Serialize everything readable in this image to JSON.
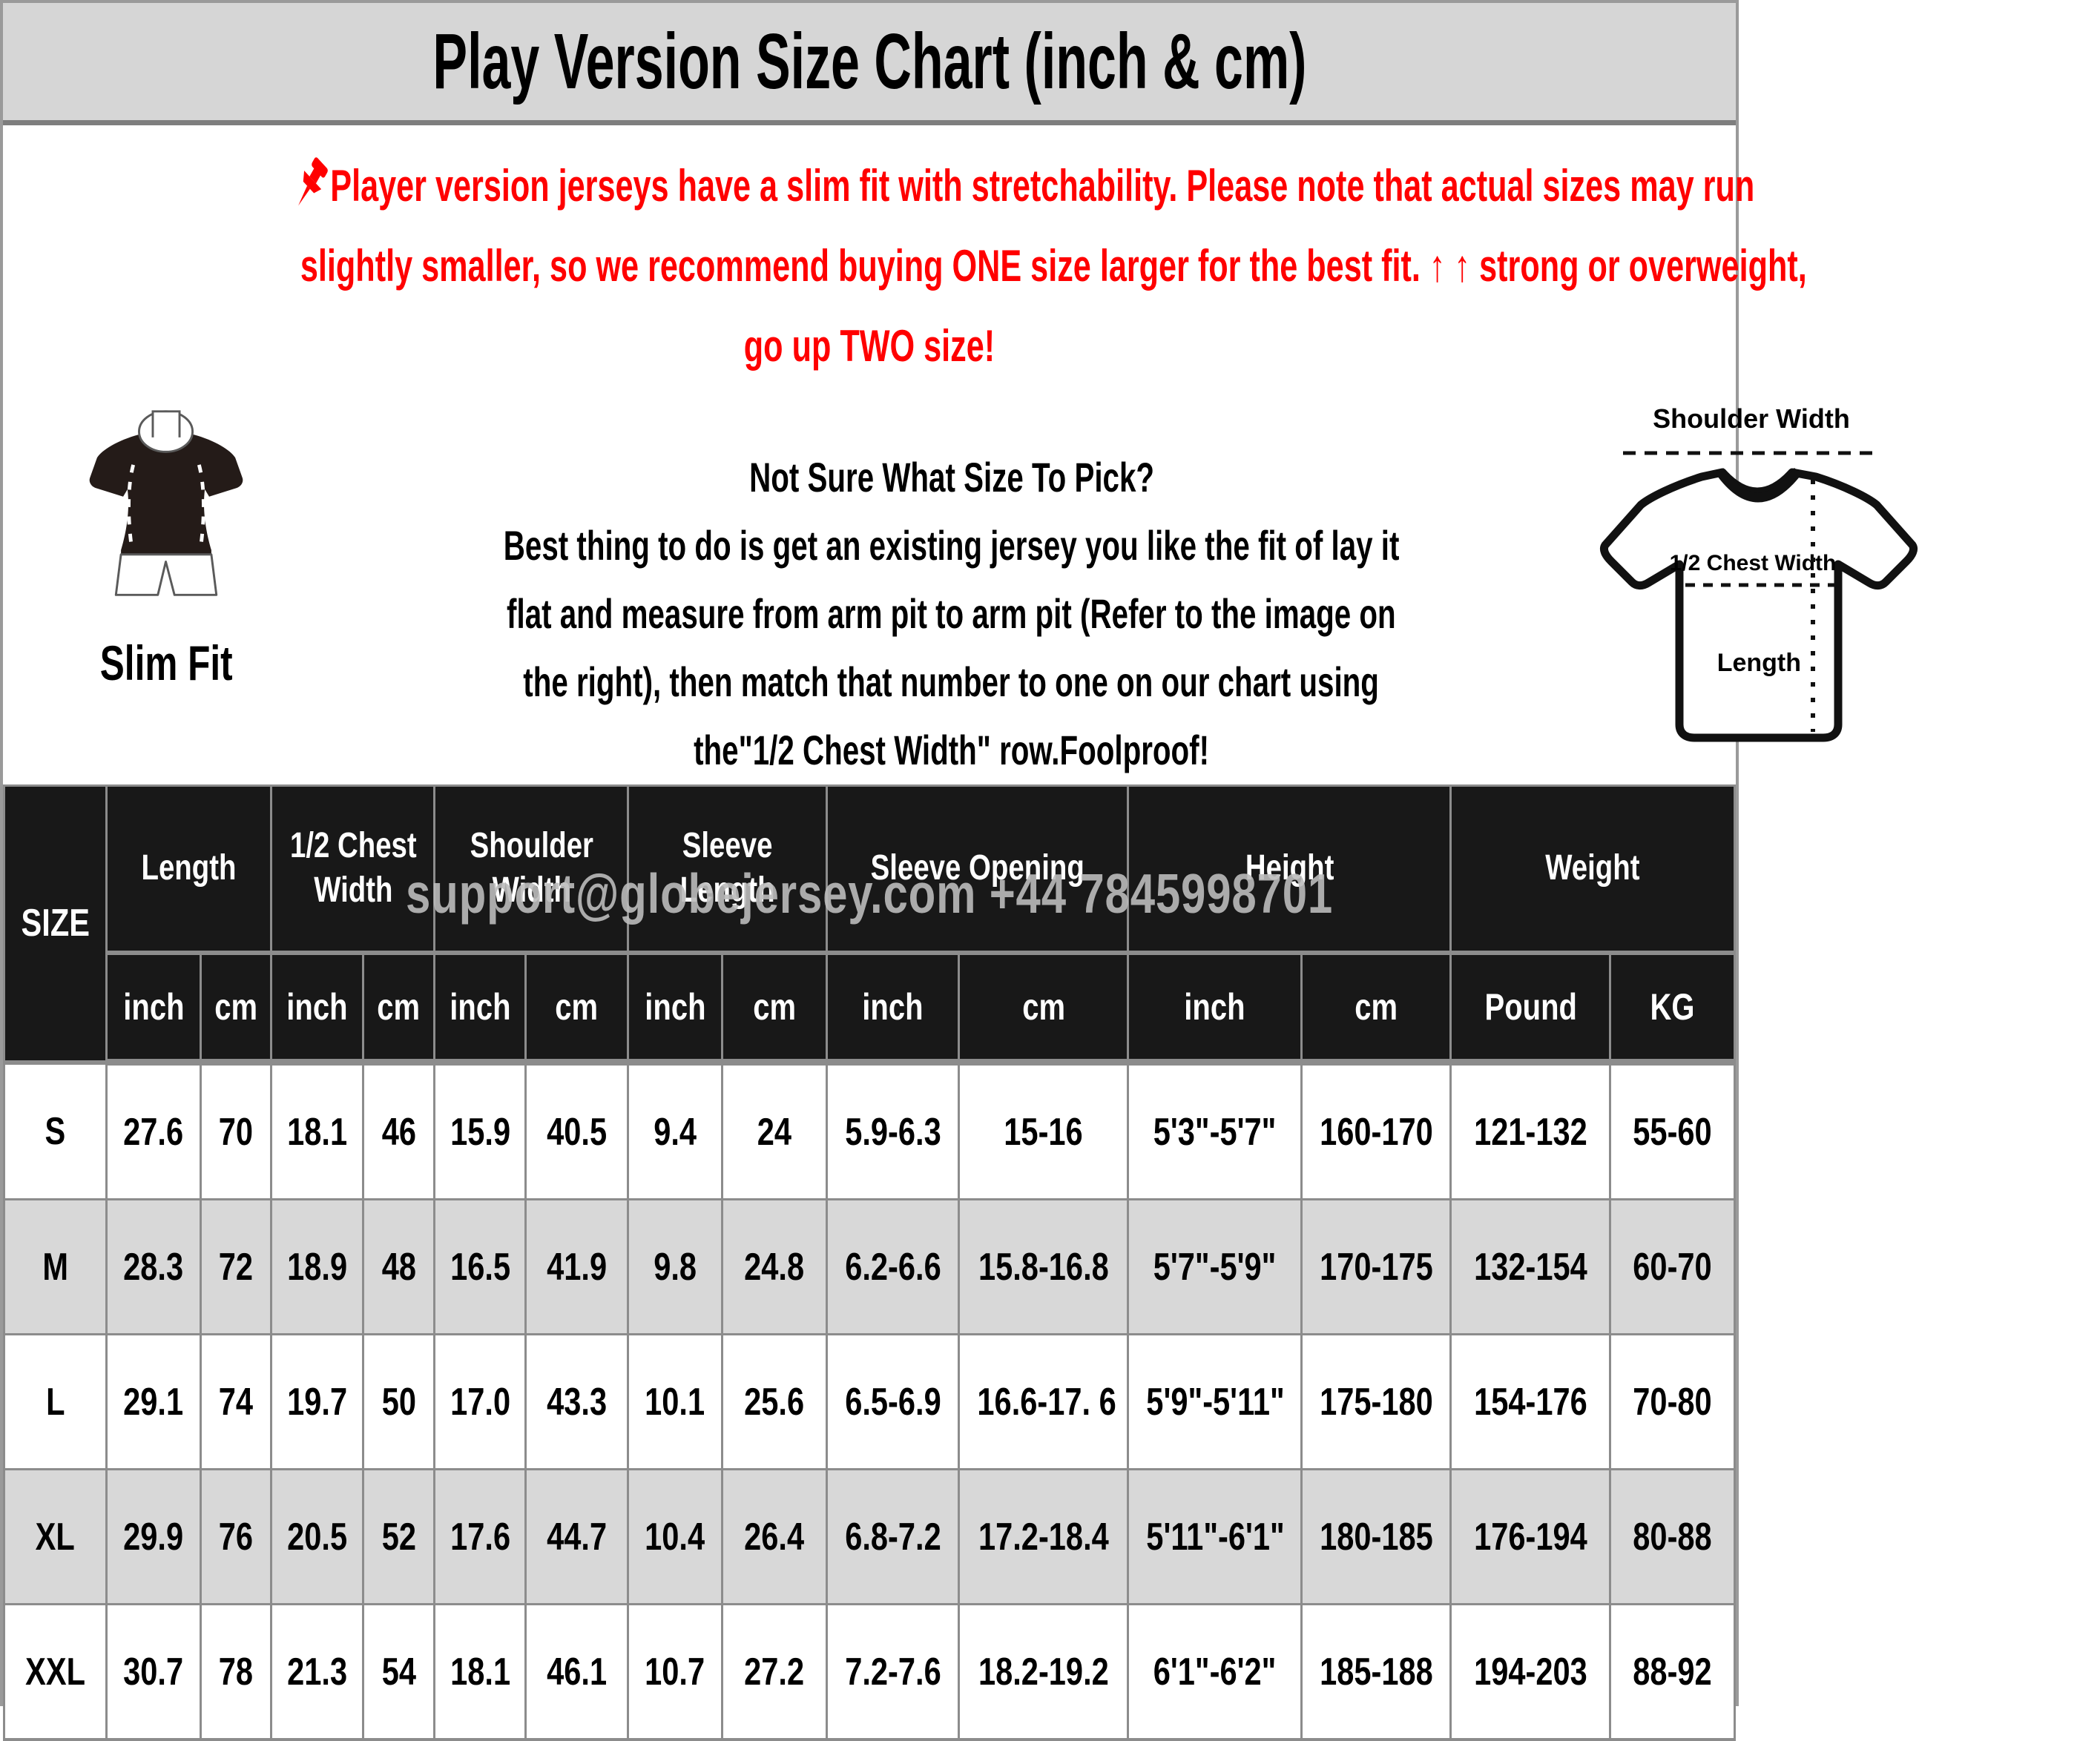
{
  "title": "Play Version Size Chart (inch & cm)",
  "icons": {
    "notice": "pushpin-icon",
    "arrows": "up-arrow"
  },
  "notice": {
    "line1": "Player version jerseys have a slim fit with stretchability. Please note that actual sizes may run",
    "line2": "slightly smaller, so we recommend buying ONE size larger for the best fit. ↑ ↑ strong or overweight,",
    "line3": "go up TWO size!"
  },
  "fit": {
    "label": "Slim Fit"
  },
  "guide": {
    "heading": "Not Sure What Size To Pick?",
    "lines": [
      "Best thing to do is get an existing jersey you like the fit of lay it",
      "flat and measure from arm pit to arm pit (Refer to the image on",
      "the right), then match that number to one on our chart using",
      "the\"1/2 Chest Width\" row.Foolproof!"
    ]
  },
  "diagram": {
    "shoulder_label": "Shoulder Width",
    "chest_label": "1/2 Chest Width",
    "length_label": "Length"
  },
  "watermark": "support@globejersey.com  +44 7845998701",
  "colors": {
    "accent_red": "#ff0000",
    "header_bg": "#181818",
    "grid_line": "#8c8c8c",
    "alt_row": "#d8d8d8",
    "title_bg": "#d6d6d6",
    "watermark_gray": "#bcbcbc"
  },
  "table": {
    "size_header": "SIZE",
    "groups": [
      {
        "label": "Length"
      },
      {
        "label": "1/2 Chest Width"
      },
      {
        "label": "Shoulder Width"
      },
      {
        "label": "Sleeve Length"
      },
      {
        "label": "Sleeve Opening"
      },
      {
        "label": "Height"
      },
      {
        "label": "Weight"
      }
    ],
    "units": [
      "inch",
      "cm",
      "inch",
      "cm",
      "inch",
      "cm",
      "inch",
      "cm",
      "inch",
      "cm",
      "inch",
      "cm",
      "Pound",
      "KG"
    ],
    "rows": [
      {
        "cells": [
          "S",
          "27.6",
          "70",
          "18.1",
          "46",
          "15.9",
          "40.5",
          "9.4",
          "24",
          "5.9-6.3",
          "15-16",
          "5'3\"-5'7\"",
          "160-170",
          "121-132",
          "55-60"
        ]
      },
      {
        "cells": [
          "M",
          "28.3",
          "72",
          "18.9",
          "48",
          "16.5",
          "41.9",
          "9.8",
          "24.8",
          "6.2-6.6",
          "15.8-16.8",
          "5'7\"-5'9\"",
          "170-175",
          "132-154",
          "60-70"
        ]
      },
      {
        "cells": [
          "L",
          "29.1",
          "74",
          "19.7",
          "50",
          "17.0",
          "43.3",
          "10.1",
          "25.6",
          "6.5-6.9",
          "16.6-17. 6",
          "5'9\"-5'11\"",
          "175-180",
          "154-176",
          "70-80"
        ]
      },
      {
        "cells": [
          "XL",
          "29.9",
          "76",
          "20.5",
          "52",
          "17.6",
          "44.7",
          "10.4",
          "26.4",
          "6.8-7.2",
          "17.2-18.4",
          "5'11\"-6'1\"",
          "180-185",
          "176-194",
          "80-88"
        ]
      },
      {
        "cells": [
          "XXL",
          "30.7",
          "78",
          "21.3",
          "54",
          "18.1",
          "46.1",
          "10.7",
          "27.2",
          "7.2-7.6",
          "18.2-19.2",
          "6'1\"-6'2\"",
          "185-188",
          "194-203",
          "88-92"
        ]
      }
    ]
  }
}
